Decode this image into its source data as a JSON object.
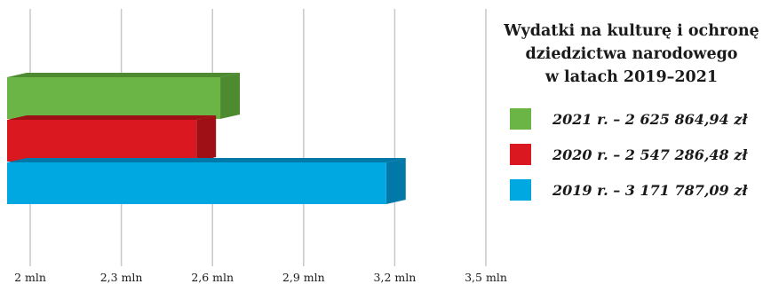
{
  "chart_data": {
    "type": "bar",
    "orientation": "horizontal",
    "title_lines": [
      "Wydatki na kulturę i ochronę",
      "dziedzictwa narodowego",
      "w latach 2019–2021"
    ],
    "xlim": [
      2000000,
      3500000
    ],
    "x_ticks": [
      2000000,
      2300000,
      2600000,
      2900000,
      3200000,
      3500000
    ],
    "x_tick_labels": [
      "2 mln",
      "2,3 mln",
      "2,6 mln",
      "2,9 mln",
      "3,2 mln",
      "3,5 mln"
    ],
    "grid": true,
    "legend_position": "right",
    "series": [
      {
        "name": "2021 r. – 2 625 864,94 zł",
        "value": 2625864.94,
        "color": "#6ab545",
        "side_color": "#4e8a30"
      },
      {
        "name": "2020 r. – 2 547 286,48 zł",
        "value": 2547286.48,
        "color": "#d9191f",
        "side_color": "#9e1016"
      },
      {
        "name": "2019 r. – 3 171 787,09 zł",
        "value": 3171787.09,
        "color": "#00a8e1",
        "side_color": "#0079a8"
      }
    ]
  }
}
